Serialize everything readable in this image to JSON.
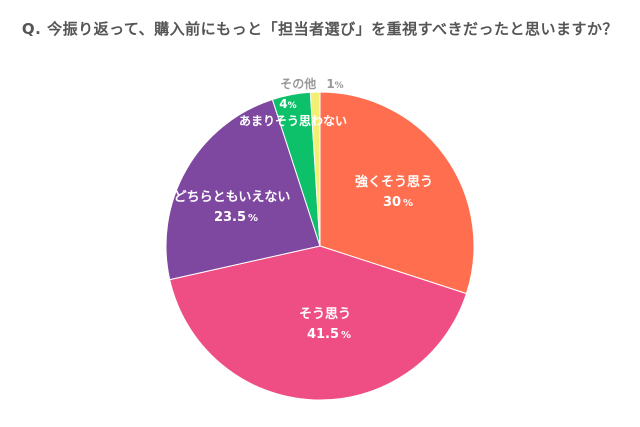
{
  "chart_data": {
    "type": "pie",
    "title": "Q. 今振り返って、購入前にもっと「担当者選び」を重視すべきだったと思いますか？",
    "slices": [
      {
        "label": "強くそう思う",
        "value": 30,
        "value_text": "30",
        "color": "#FF6F4F"
      },
      {
        "label": "そう思う",
        "value": 41.5,
        "value_text": "41.5",
        "color": "#EE4E84"
      },
      {
        "label": "どちらともいえない",
        "value": 23.5,
        "value_text": "23.5",
        "color": "#7E48A0"
      },
      {
        "label": "あまりそう思わない",
        "value": 4,
        "value_text": "4",
        "color": "#0DC16A"
      },
      {
        "label": "その他",
        "value": 1,
        "value_text": "1",
        "color": "#F2EF75"
      }
    ],
    "unit": "%",
    "start": "top",
    "direction": "clockwise"
  }
}
